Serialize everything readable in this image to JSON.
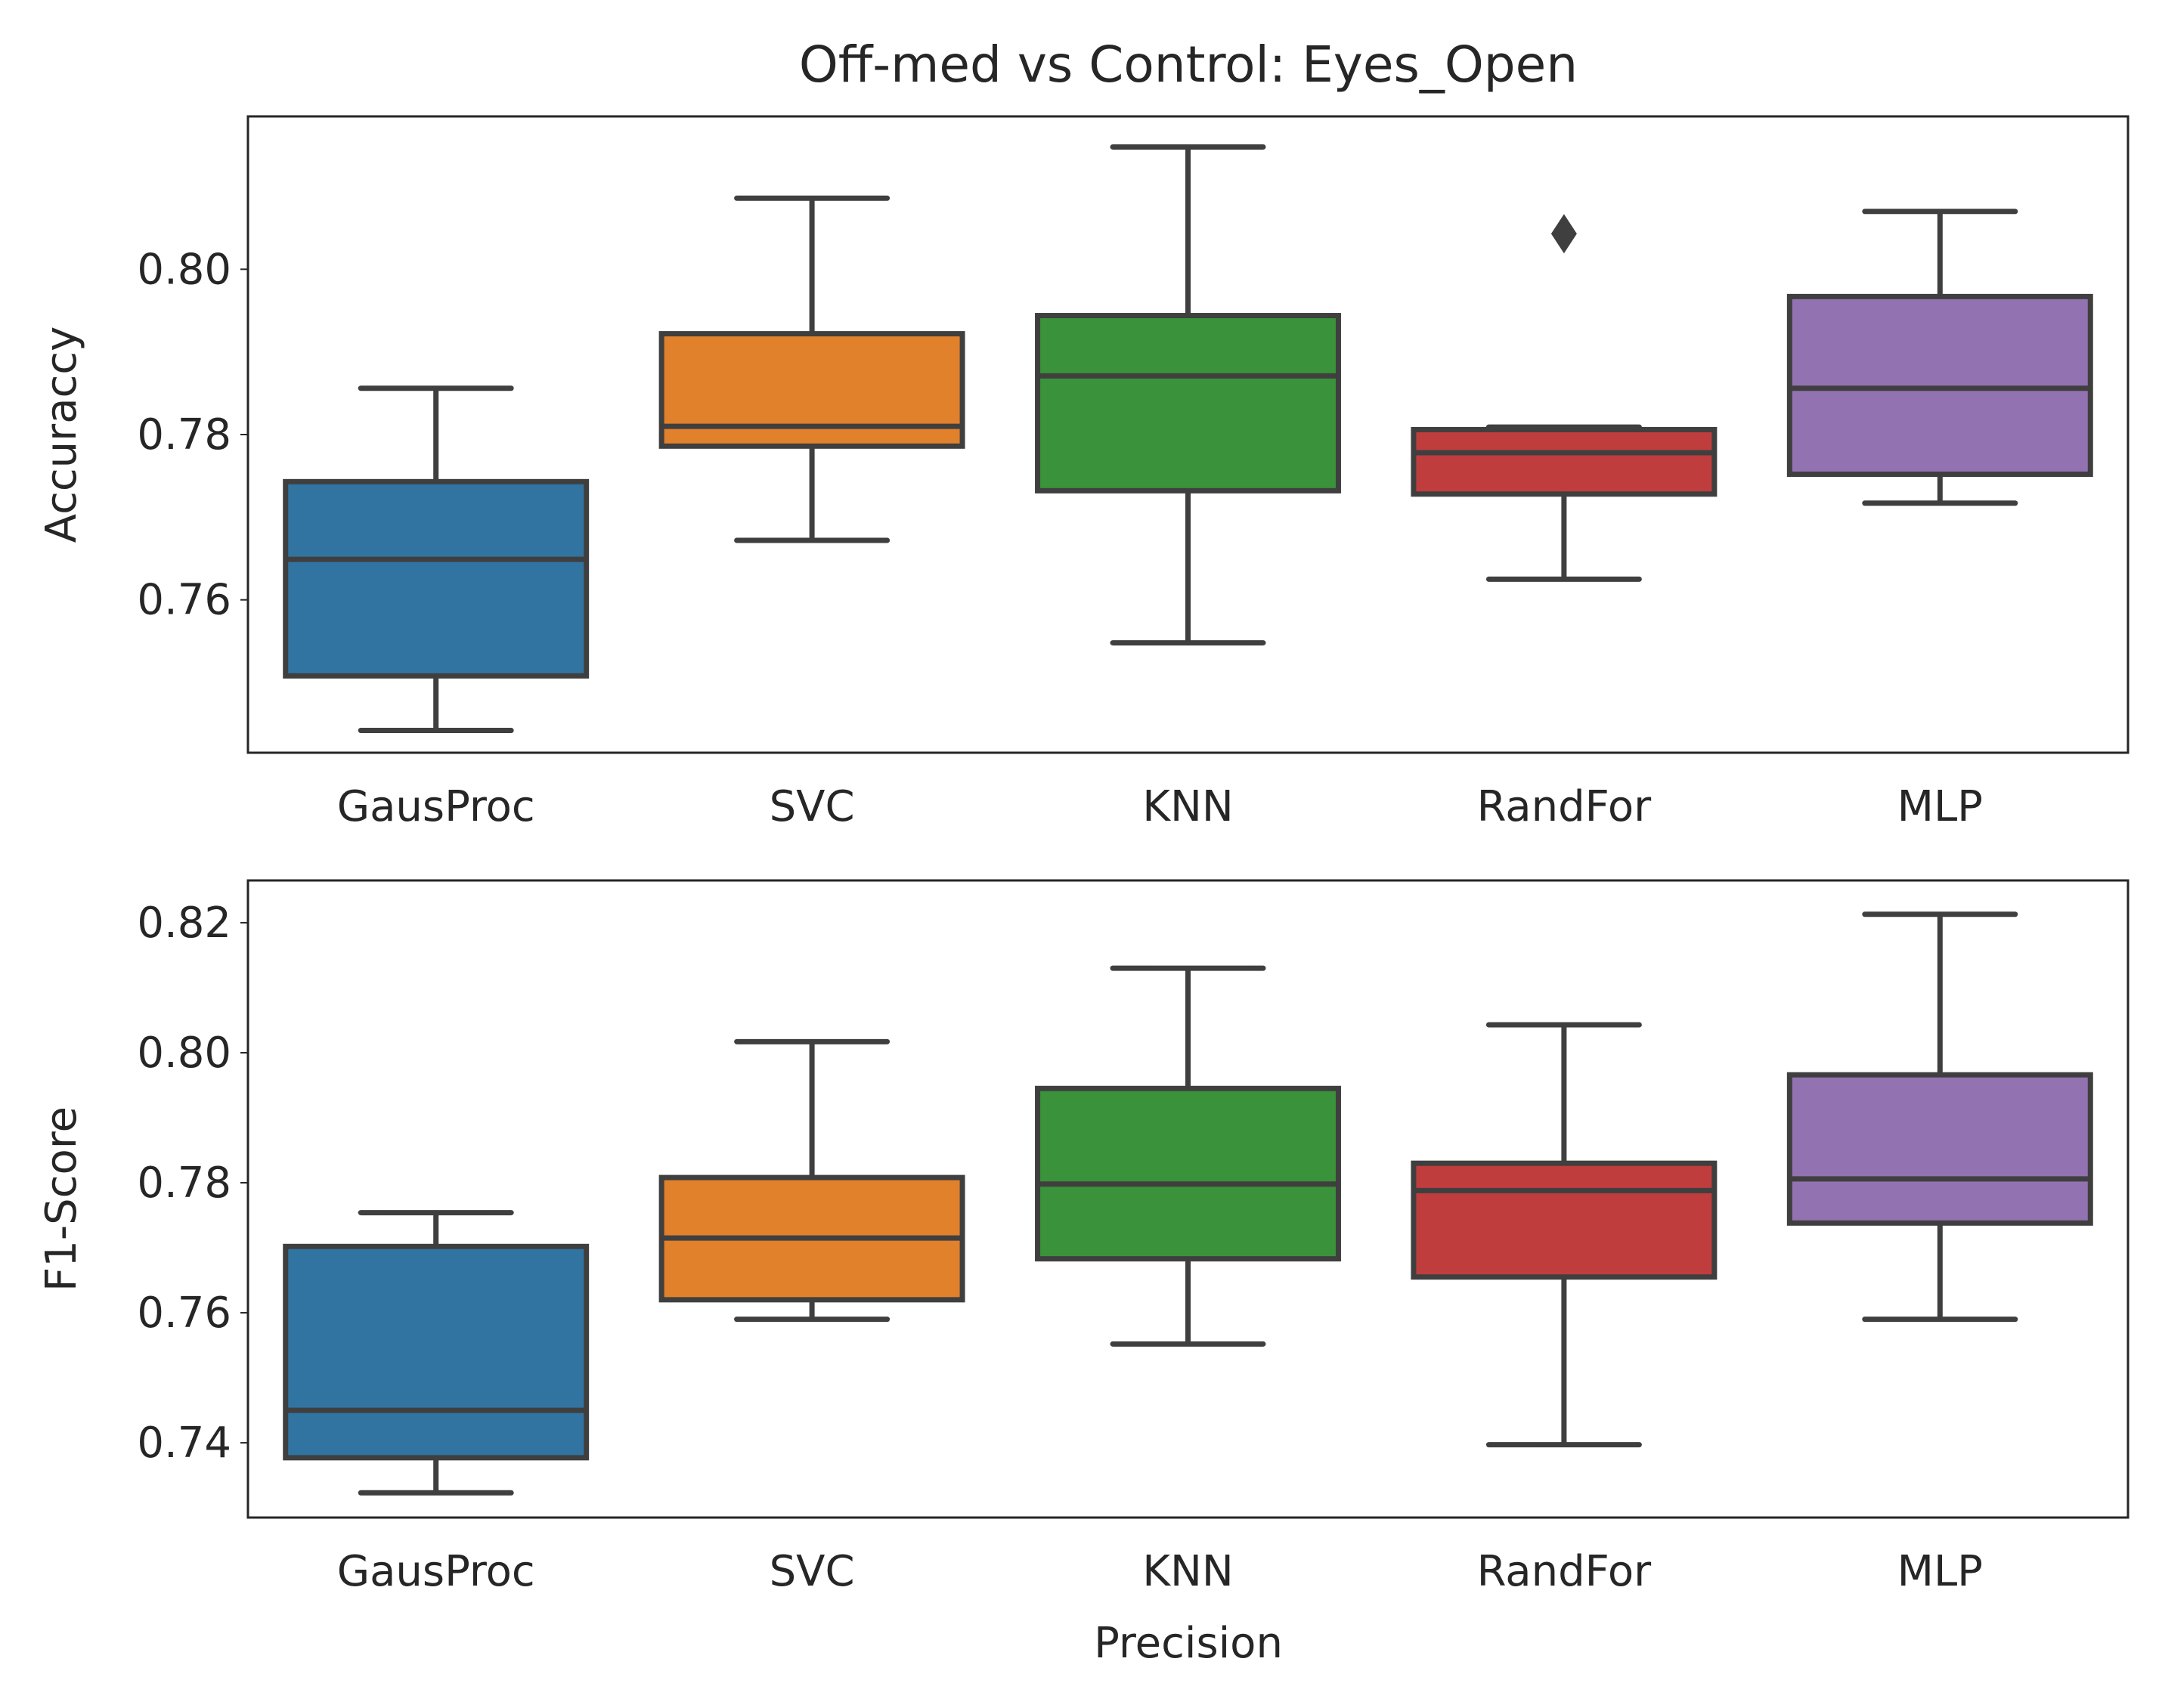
{
  "chart_data": {
    "type": "box",
    "title": "Off-med vs Control: Eyes_Open",
    "xlabel": "Precision",
    "categories": [
      "GausProc",
      "SVC",
      "KNN",
      "RandFor",
      "MLP"
    ],
    "colors": [
      "#3274a1",
      "#e1812c",
      "#3a923a",
      "#c03d3e",
      "#9372b2"
    ],
    "edge_color": "#3f3f3f",
    "grid": false,
    "panels": [
      {
        "ylabel": "Accuraccy",
        "ylim": [
          0.7415,
          0.8185
        ],
        "yticks": [
          0.76,
          0.78,
          0.8
        ],
        "ytick_labels": [
          "0.76",
          "0.78",
          "0.80"
        ],
        "boxes": [
          {
            "category": "GausProc",
            "whislo": 0.7442,
            "q1": 0.7508,
            "median": 0.7649,
            "q3": 0.7743,
            "whishi": 0.7856,
            "outliers": []
          },
          {
            "category": "SVC",
            "whislo": 0.7672,
            "q1": 0.7786,
            "median": 0.781,
            "q3": 0.7922,
            "whishi": 0.8086,
            "outliers": []
          },
          {
            "category": "KNN",
            "whislo": 0.7548,
            "q1": 0.7732,
            "median": 0.7871,
            "q3": 0.7944,
            "whishi": 0.8148,
            "outliers": []
          },
          {
            "category": "RandFor",
            "whislo": 0.7625,
            "q1": 0.7728,
            "median": 0.7778,
            "q3": 0.7806,
            "whishi": 0.7809,
            "outliers": [
              0.8043
            ]
          },
          {
            "category": "MLP",
            "whislo": 0.7717,
            "q1": 0.7752,
            "median": 0.7856,
            "q3": 0.7967,
            "whishi": 0.807,
            "outliers": []
          }
        ]
      },
      {
        "ylabel": "F1-Score",
        "xlabel": "Precision",
        "ylim": [
          0.7285,
          0.8265
        ],
        "yticks": [
          0.74,
          0.76,
          0.78,
          0.8,
          0.82
        ],
        "ytick_labels": [
          "0.74",
          "0.76",
          "0.78",
          "0.80",
          "0.82"
        ],
        "boxes": [
          {
            "category": "GausProc",
            "whislo": 0.7323,
            "q1": 0.7377,
            "median": 0.745,
            "q3": 0.7702,
            "whishi": 0.7754,
            "outliers": []
          },
          {
            "category": "SVC",
            "whislo": 0.759,
            "q1": 0.762,
            "median": 0.7715,
            "q3": 0.7808,
            "whishi": 0.8017,
            "outliers": []
          },
          {
            "category": "KNN",
            "whislo": 0.7552,
            "q1": 0.7683,
            "median": 0.7798,
            "q3": 0.7945,
            "whishi": 0.813,
            "outliers": []
          },
          {
            "category": "RandFor",
            "whislo": 0.7397,
            "q1": 0.7655,
            "median": 0.7788,
            "q3": 0.783,
            "whishi": 0.8043,
            "outliers": []
          },
          {
            "category": "MLP",
            "whislo": 0.759,
            "q1": 0.7738,
            "median": 0.7806,
            "q3": 0.7966,
            "whishi": 0.8213,
            "outliers": []
          }
        ]
      }
    ]
  }
}
